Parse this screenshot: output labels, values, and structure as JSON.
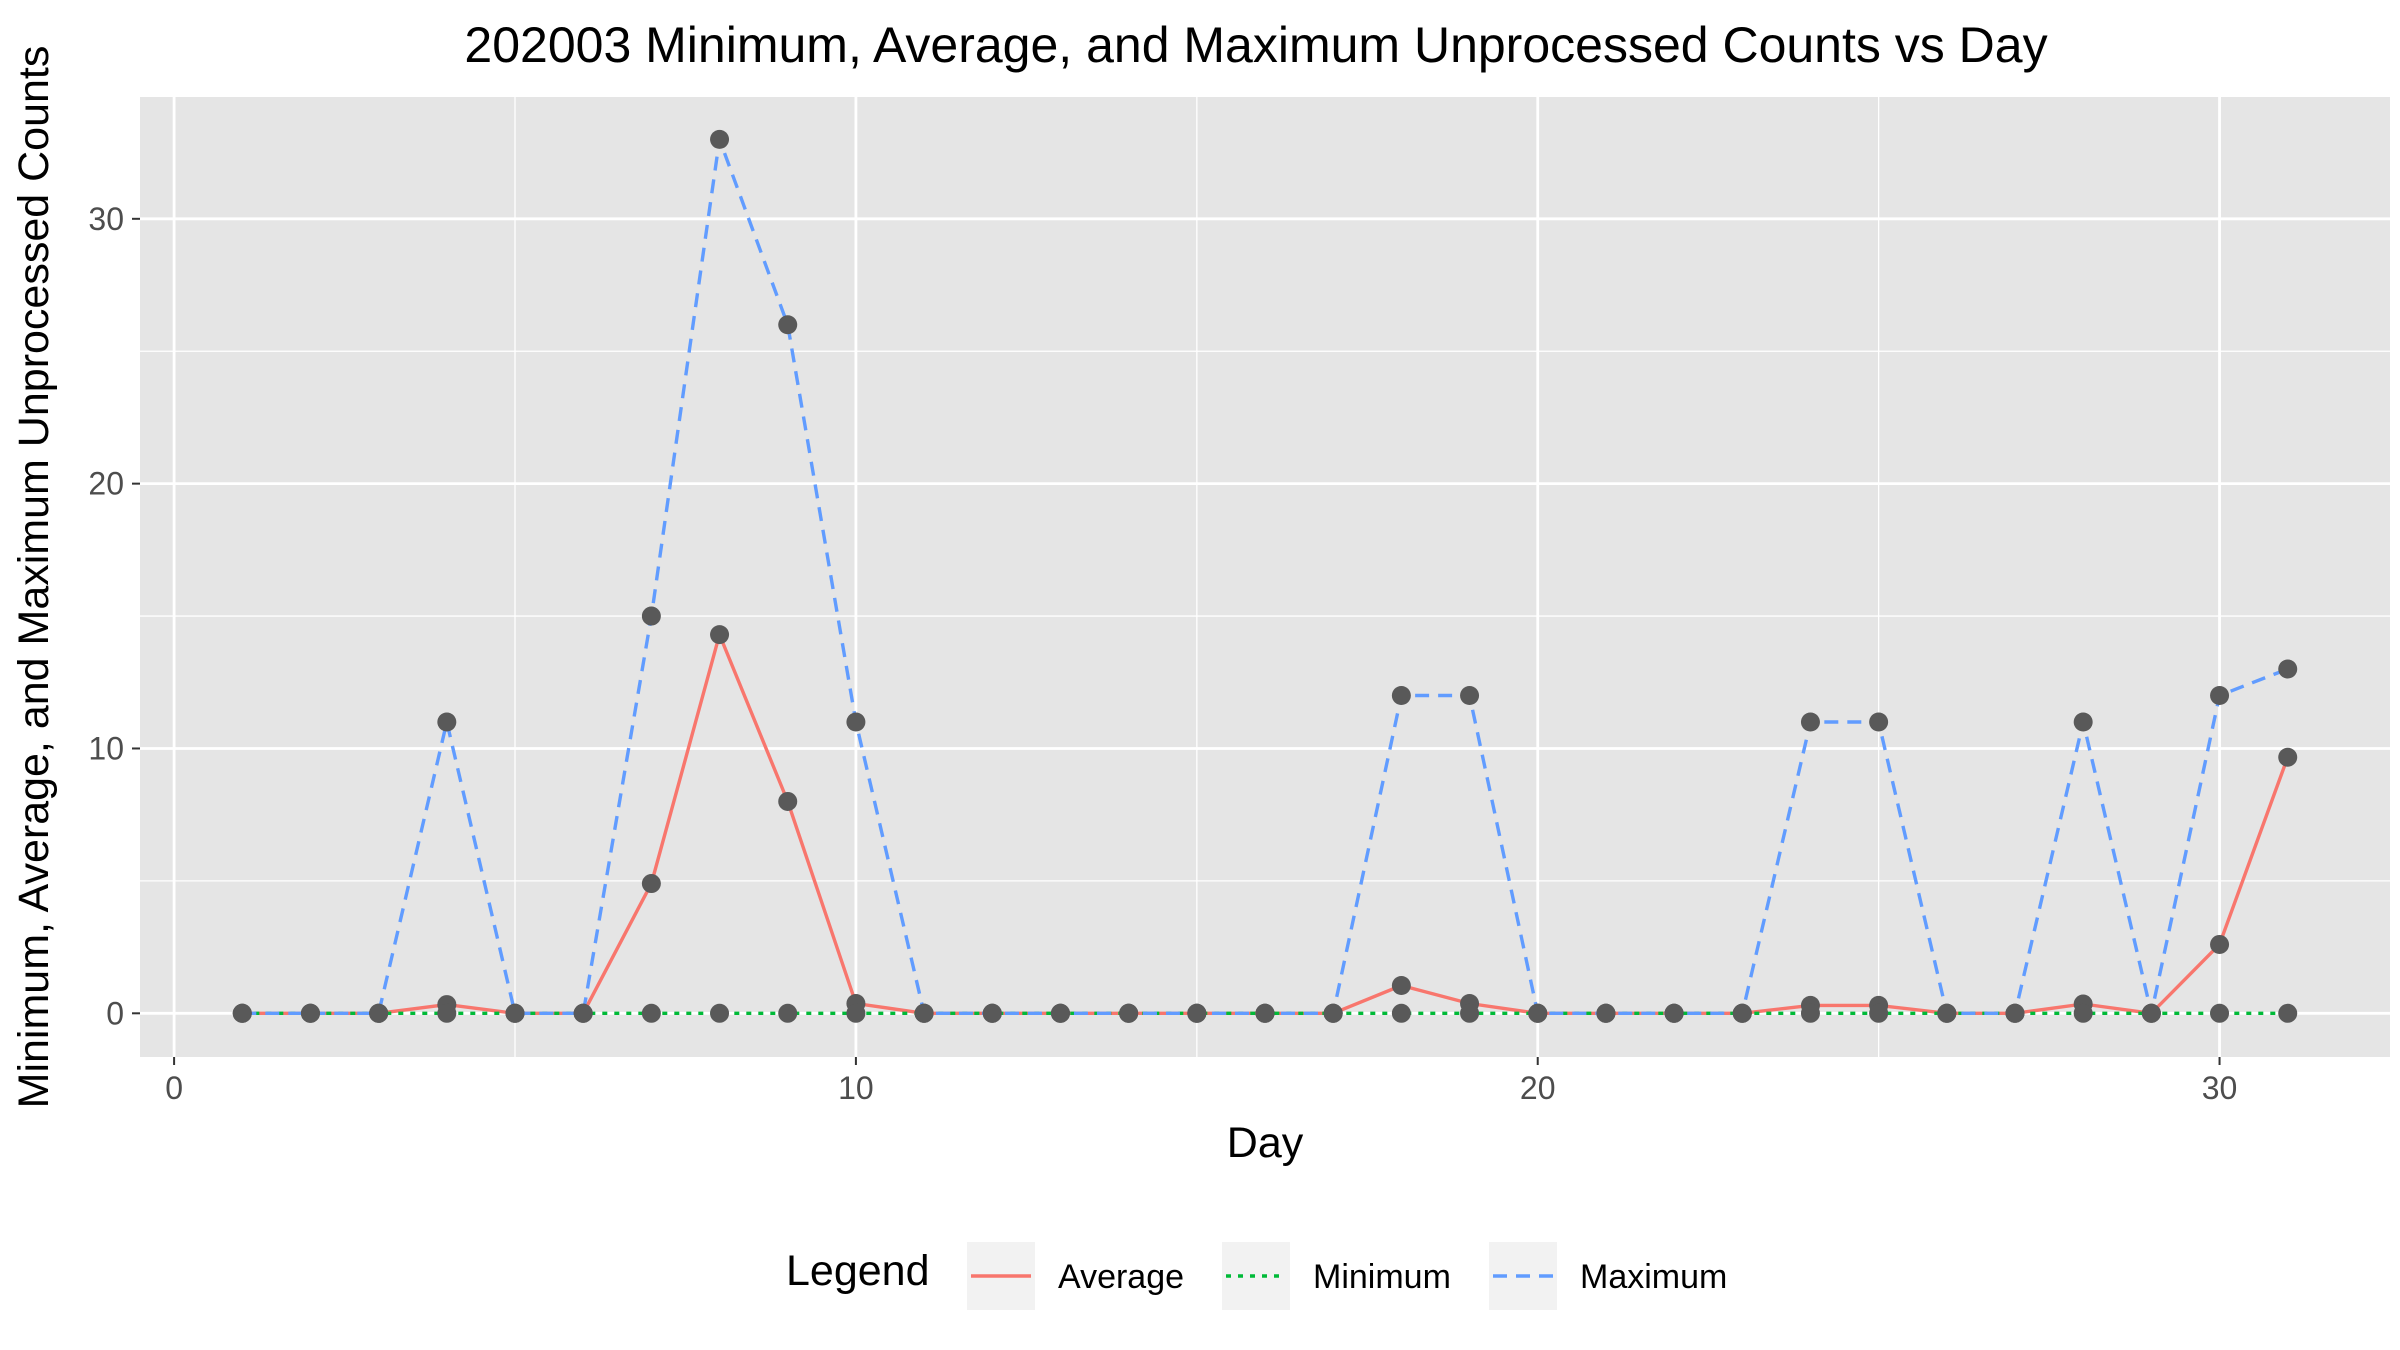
{
  "chart_data": {
    "type": "line",
    "title": "202003 Minimum, Average, and Maximum Unprocessed Counts vs Day",
    "xlabel": "Day",
    "ylabel": "Minimum, Average, and Maximum Unprocessed Counts",
    "x": [
      1,
      2,
      3,
      4,
      5,
      6,
      7,
      8,
      9,
      10,
      11,
      12,
      13,
      14,
      15,
      16,
      17,
      18,
      19,
      20,
      21,
      22,
      23,
      24,
      25,
      26,
      27,
      28,
      29,
      30,
      31
    ],
    "xlim": [
      -0.5,
      32.5
    ],
    "ylim": [
      -1.65,
      34.6
    ],
    "xticks": [
      0,
      10,
      20,
      30
    ],
    "yticks": [
      0,
      10,
      20,
      30
    ],
    "xtick_labels": [
      "0",
      "10",
      "20",
      "30"
    ],
    "ytick_labels": [
      "0",
      "10",
      "20",
      "30"
    ],
    "grid": true,
    "legend_position": "bottom",
    "legend_title": "Legend",
    "series": [
      {
        "name": "Average",
        "color": "#f8766d",
        "dash": "solid",
        "values": [
          0,
          0,
          0,
          0.33,
          0,
          0,
          4.9,
          14.3,
          8,
          0.37,
          0,
          0,
          0,
          0,
          0,
          0,
          0,
          1.05,
          0.37,
          0,
          0,
          0,
          0,
          0.3,
          0.3,
          0,
          0,
          0.35,
          0,
          2.6,
          9.67
        ]
      },
      {
        "name": "Minimum",
        "color": "#00ba38",
        "dash": "dotted",
        "values": [
          0,
          0,
          0,
          0,
          0,
          0,
          0,
          0,
          0,
          0,
          0,
          0,
          0,
          0,
          0,
          0,
          0,
          0,
          0,
          0,
          0,
          0,
          0,
          0,
          0,
          0,
          0,
          0,
          0,
          0,
          0
        ]
      },
      {
        "name": "Maximum",
        "color": "#619cff",
        "dash": "dashed",
        "values": [
          0,
          0,
          0,
          11,
          0,
          0,
          15,
          33,
          26,
          11,
          0,
          0,
          0,
          0,
          0,
          0,
          0,
          12,
          12,
          0,
          0,
          0,
          0,
          11,
          11,
          0,
          0,
          11,
          0,
          12,
          13
        ]
      }
    ],
    "point_color": "#595959",
    "panel_background": "#e5e5e5",
    "grid_color": "#ffffff"
  }
}
